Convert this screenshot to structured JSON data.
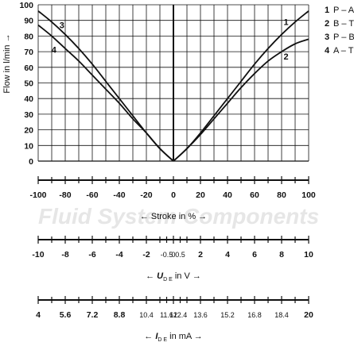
{
  "chart_data": {
    "type": "line",
    "ylabel": "Flow in l/min →",
    "xlabel": "← Stroke in % →",
    "ylim": [
      0,
      100
    ],
    "xlim": [
      -100,
      100
    ],
    "y_ticks": [
      0,
      10,
      20,
      30,
      40,
      50,
      60,
      70,
      80,
      90,
      100
    ],
    "x_grid": [
      -100,
      -90,
      -80,
      -70,
      -60,
      -50,
      -40,
      -30,
      -20,
      -10,
      0,
      10,
      20,
      30,
      40,
      50,
      60,
      70,
      80,
      90,
      100
    ],
    "grid": true,
    "series": [
      {
        "name": "P – A",
        "number": "1",
        "x": [
          0,
          10,
          20,
          30,
          40,
          50,
          60,
          70,
          80,
          90,
          100
        ],
        "y": [
          0,
          8,
          18,
          29,
          40,
          51,
          62,
          72,
          81,
          89,
          96
        ]
      },
      {
        "name": "B – T",
        "number": "2",
        "x": [
          0,
          10,
          20,
          30,
          40,
          50,
          60,
          70,
          80,
          90,
          100
        ],
        "y": [
          0,
          8,
          17,
          27,
          37,
          47,
          56,
          64,
          70,
          75,
          78
        ]
      },
      {
        "name": "P – B",
        "number": "3",
        "x": [
          -100,
          -90,
          -80,
          -70,
          -60,
          -50,
          -40,
          -30,
          -20,
          -10,
          0
        ],
        "y": [
          96,
          89,
          81,
          72,
          62,
          51,
          40,
          29,
          18,
          8,
          0
        ]
      },
      {
        "name": "A – T",
        "number": "4",
        "x": [
          -100,
          -90,
          -80,
          -70,
          -60,
          -50,
          -40,
          -30,
          -20,
          -10,
          0
        ],
        "y": [
          87,
          80,
          72,
          64,
          55,
          46,
          37,
          27,
          18,
          8,
          0
        ]
      }
    ],
    "legend_position": "top-right",
    "scales": [
      {
        "id": "stroke",
        "title": "← Stroke in % →",
        "labels": [
          "-100",
          "-80",
          "-60",
          "-40",
          "-20",
          "0",
          "20",
          "40",
          "60",
          "80",
          "100"
        ],
        "label_stroke": [
          -100,
          -80,
          -60,
          -40,
          -20,
          0,
          20,
          40,
          60,
          80,
          100
        ],
        "ticks_stroke": [
          -100,
          -90,
          -80,
          -70,
          -60,
          -50,
          -40,
          -30,
          -20,
          -10,
          0,
          10,
          20,
          30,
          40,
          50,
          60,
          70,
          80,
          90,
          100
        ]
      },
      {
        "id": "voltage",
        "title_prefix": "← ",
        "title_symbol": "U",
        "title_sub": "D E",
        "title_suffix": " in V →",
        "labels": [
          "-10",
          "-8",
          "-6",
          "-4",
          "-2",
          "-0.5",
          "0",
          "0.5",
          "2",
          "4",
          "6",
          "8",
          "10"
        ],
        "label_stroke": [
          -100,
          -80,
          -60,
          -40,
          -20,
          -5,
          0,
          5,
          20,
          40,
          60,
          80,
          100
        ],
        "small_labels": [
          "-0.5",
          "0",
          "0.5"
        ],
        "ticks_stroke": [
          -100,
          -90,
          -80,
          -70,
          -60,
          -50,
          -40,
          -30,
          -20,
          -10,
          -5,
          0,
          5,
          10,
          20,
          30,
          40,
          50,
          60,
          70,
          80,
          90,
          100
        ]
      },
      {
        "id": "current",
        "title_prefix": "← ",
        "title_symbol": "I",
        "title_sub": "D E",
        "title_suffix": " in mA →",
        "labels": [
          "4",
          "5.6",
          "7.2",
          "8.8",
          "10.4",
          "11.6",
          "12",
          "12.4",
          "13.6",
          "15.2",
          "16.8",
          "18.4",
          "20"
        ],
        "label_stroke": [
          -100,
          -80,
          -60,
          -40,
          -20,
          -5,
          0,
          5,
          20,
          40,
          60,
          80,
          100
        ],
        "small_labels": [
          "10.4",
          "11.6",
          "12",
          "12.4",
          "13.6",
          "15.2",
          "16.8",
          "18.4"
        ],
        "ticks_stroke": [
          -100,
          -90,
          -80,
          -70,
          -60,
          -50,
          -40,
          -30,
          -20,
          -10,
          -5,
          0,
          5,
          10,
          20,
          30,
          40,
          50,
          60,
          70,
          80,
          90,
          100
        ]
      }
    ],
    "watermark": "Fluid System Components"
  },
  "colors": {
    "line": "#111111",
    "grid": "#111111",
    "watermark": "#e6e6e6"
  }
}
